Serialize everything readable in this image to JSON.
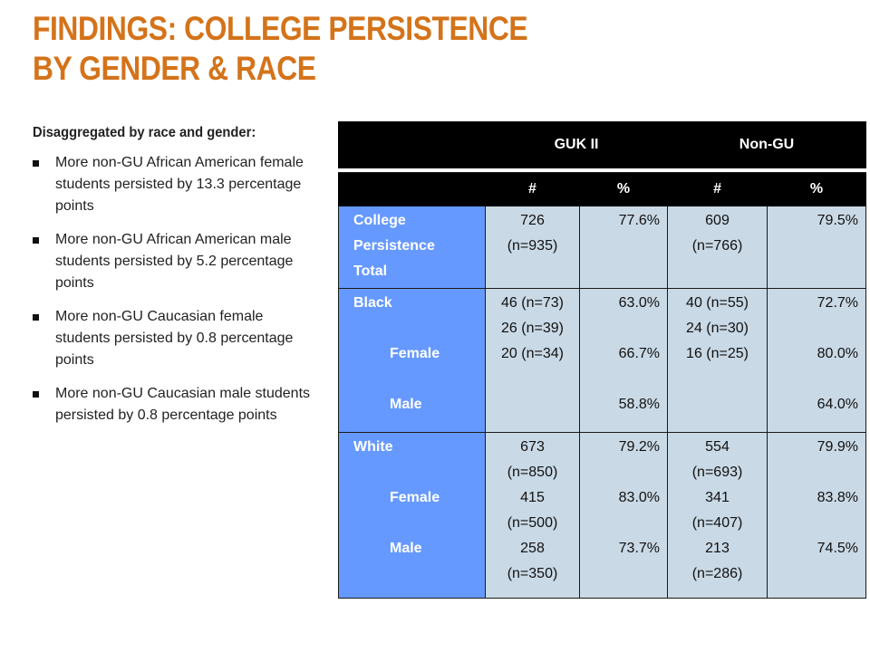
{
  "title": {
    "line1": "FINDINGS: COLLEGE PERSISTENCE",
    "line2": "BY GENDER & RACE",
    "color": "#d4731a"
  },
  "left": {
    "heading": "Disaggregated by race and gender:",
    "bullets": [
      "More non-GU African American female students persisted by 13.3 percentage points",
      "More non-GU African American male students persisted by 5.2 percentage points",
      "More non-GU Caucasian female students persisted by 0.8 percentage points",
      "More non-GU Caucasian male students persisted by 0.8 percentage points"
    ]
  },
  "table": {
    "group_headers": [
      "GUK II",
      "Non-GU"
    ],
    "sub_headers": [
      "#",
      "%",
      "#",
      "%"
    ],
    "rows": {
      "total": {
        "label_lines": [
          "College",
          "Persistence",
          "Total"
        ],
        "guk_n": [
          "726",
          "(n=935)"
        ],
        "guk_pct": "77.6%",
        "ngu_n": [
          "609",
          "(n=766)"
        ],
        "ngu_pct": "79.5%"
      },
      "black": {
        "label": "Black",
        "female": "Female",
        "male": "Male",
        "guk_n": [
          "46 (n=73)",
          "26 (n=39)",
          "20 (n=34)"
        ],
        "guk_pct": [
          "63.0%",
          "66.7%",
          "58.8%"
        ],
        "ngu_n": [
          "40 (n=55)",
          "24 (n=30)",
          "16 (n=25)"
        ],
        "ngu_pct": [
          "72.7%",
          "80.0%",
          "64.0%"
        ]
      },
      "white": {
        "label": "White",
        "female": "Female",
        "male": "Male",
        "guk_n": [
          "673",
          "(n=850)",
          "415",
          "(n=500)",
          "258",
          "(n=350)"
        ],
        "guk_pct": [
          "79.2%",
          "83.0%",
          "73.7%"
        ],
        "ngu_n": [
          "554",
          "(n=693)",
          "341",
          "(n=407)",
          "213",
          "(n=286)"
        ],
        "ngu_pct": [
          "79.9%",
          "83.8%",
          "74.5%"
        ]
      }
    },
    "colors": {
      "header_bg": "#000000",
      "label_bg": "#6699ff",
      "cell_bg": "#c9d9e6"
    }
  }
}
